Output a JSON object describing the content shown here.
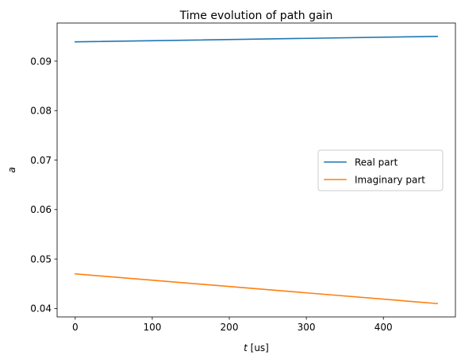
{
  "chart_data": {
    "type": "line",
    "title": "Time evolution of path gain",
    "xlabel_var": "t",
    "xlabel_unit": " [us]",
    "ylabel": "a",
    "x": [
      0,
      470
    ],
    "series": [
      {
        "name": "Real part",
        "color": "#1f77b4",
        "x": [
          0,
          470
        ],
        "y": [
          0.0939,
          0.095
        ]
      },
      {
        "name": "Imaginary part",
        "color": "#ff7f0e",
        "x": [
          0,
          470
        ],
        "y": [
          0.047,
          0.041
        ]
      }
    ],
    "xlim": [
      -23.5,
      493.5
    ],
    "ylim": [
      0.0383,
      0.0977
    ],
    "xticks": [
      0,
      100,
      200,
      300,
      400
    ],
    "xtick_labels": [
      "0",
      "100",
      "200",
      "300",
      "400"
    ],
    "yticks": [
      0.04,
      0.05,
      0.06,
      0.07,
      0.08,
      0.09
    ],
    "ytick_labels": [
      "0.04",
      "0.05",
      "0.06",
      "0.07",
      "0.08",
      "0.09"
    ],
    "grid": false,
    "legend": "center-right"
  }
}
